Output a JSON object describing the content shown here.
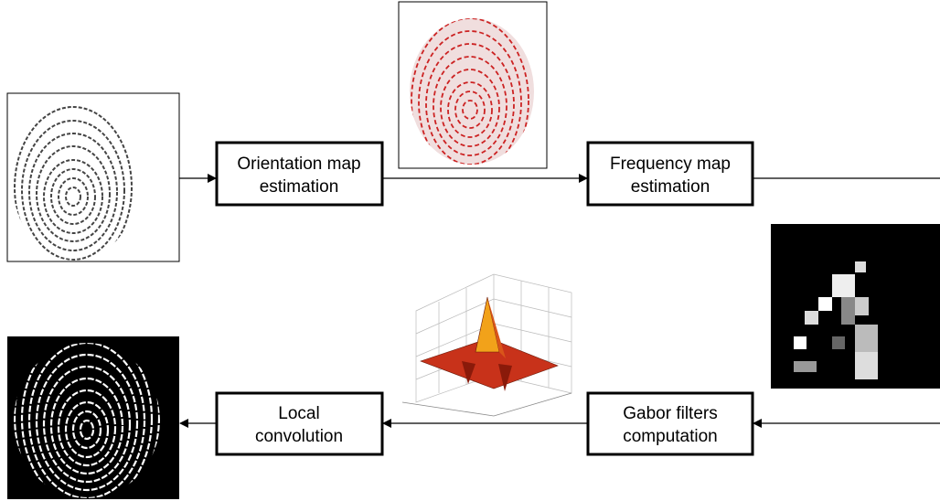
{
  "nodes": [
    {
      "lines": [
        "Orientation map",
        "estimation"
      ]
    },
    {
      "lines": [
        "Frequency map",
        "estimation"
      ]
    },
    {
      "lines": [
        "Gabor filters",
        "computation"
      ]
    },
    {
      "lines": [
        "Local",
        "convolution"
      ]
    }
  ]
}
